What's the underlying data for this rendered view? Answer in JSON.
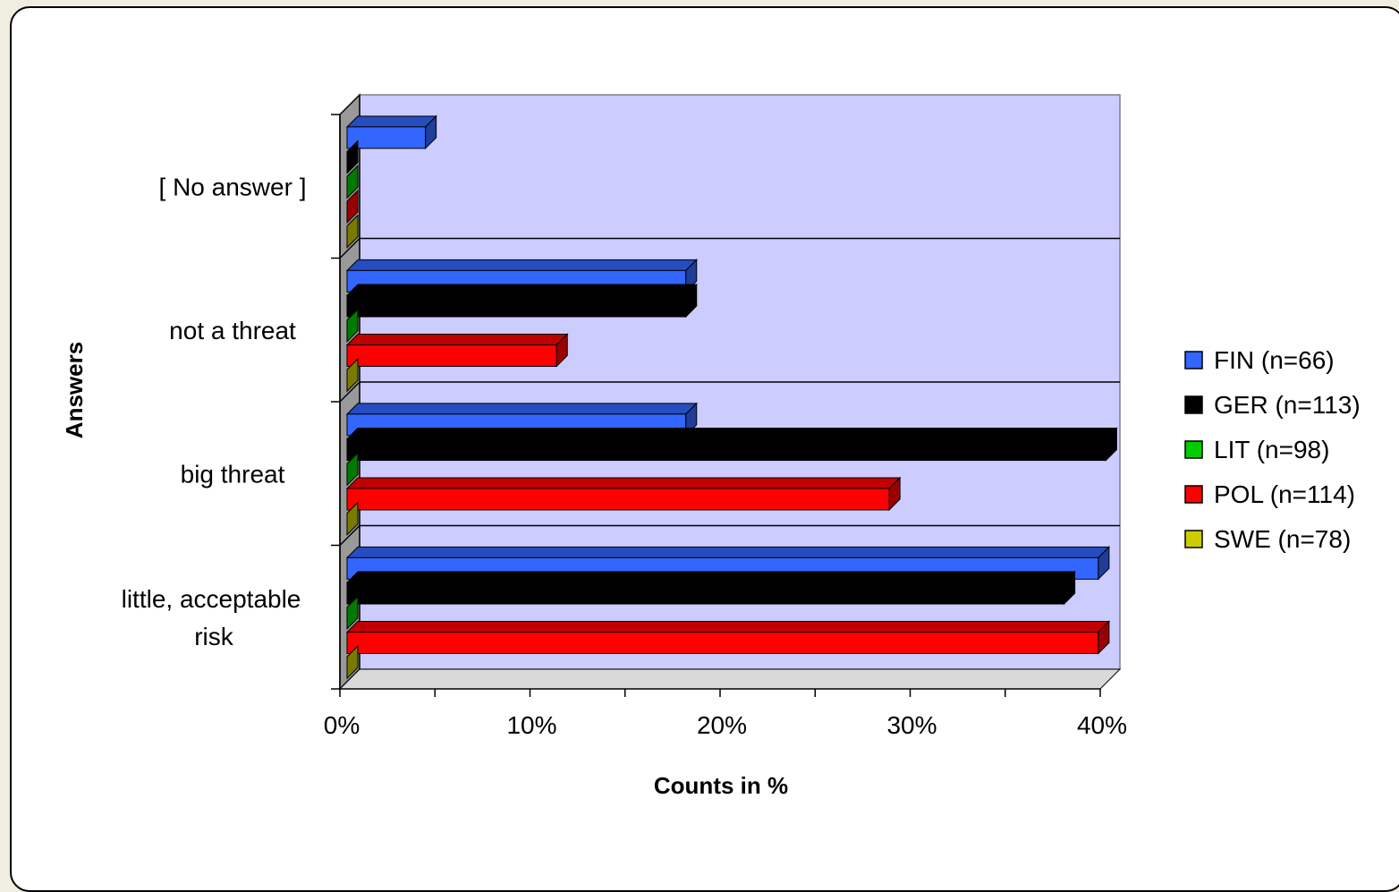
{
  "chart_data": {
    "type": "bar",
    "orientation": "horizontal",
    "style": "3d",
    "categories": [
      "[ No answer ]",
      "not a threat",
      "big threat",
      "little, acceptable risk"
    ],
    "series": [
      {
        "name": "FIN (n=66)",
        "color": "#3366ff",
        "values": [
          4.5,
          18.2,
          18.2,
          39.9
        ]
      },
      {
        "name": "GER (n=113)",
        "color": "#000000",
        "values": [
          0.0,
          18.2,
          40.3,
          38.1
        ]
      },
      {
        "name": "LIT (n=98)",
        "color": "#00cc00",
        "values": [
          0.0,
          0.0,
          0.0,
          0.0
        ]
      },
      {
        "name": "POL (n=114)",
        "color": "#ff0000",
        "values": [
          0.0,
          11.4,
          28.9,
          39.9
        ]
      },
      {
        "name": "SWE (n=78)",
        "color": "#cccc00",
        "values": [
          0.0,
          0.0,
          0.0,
          0.0
        ]
      }
    ],
    "x_ticks": [
      "0%",
      "10%",
      "20%",
      "30%",
      "40%"
    ],
    "xlim": [
      0,
      40
    ],
    "xlabel": "Counts in %",
    "ylabel": "Answers",
    "plot_background": "#ccccff",
    "legend_position": "right",
    "grid": true
  }
}
